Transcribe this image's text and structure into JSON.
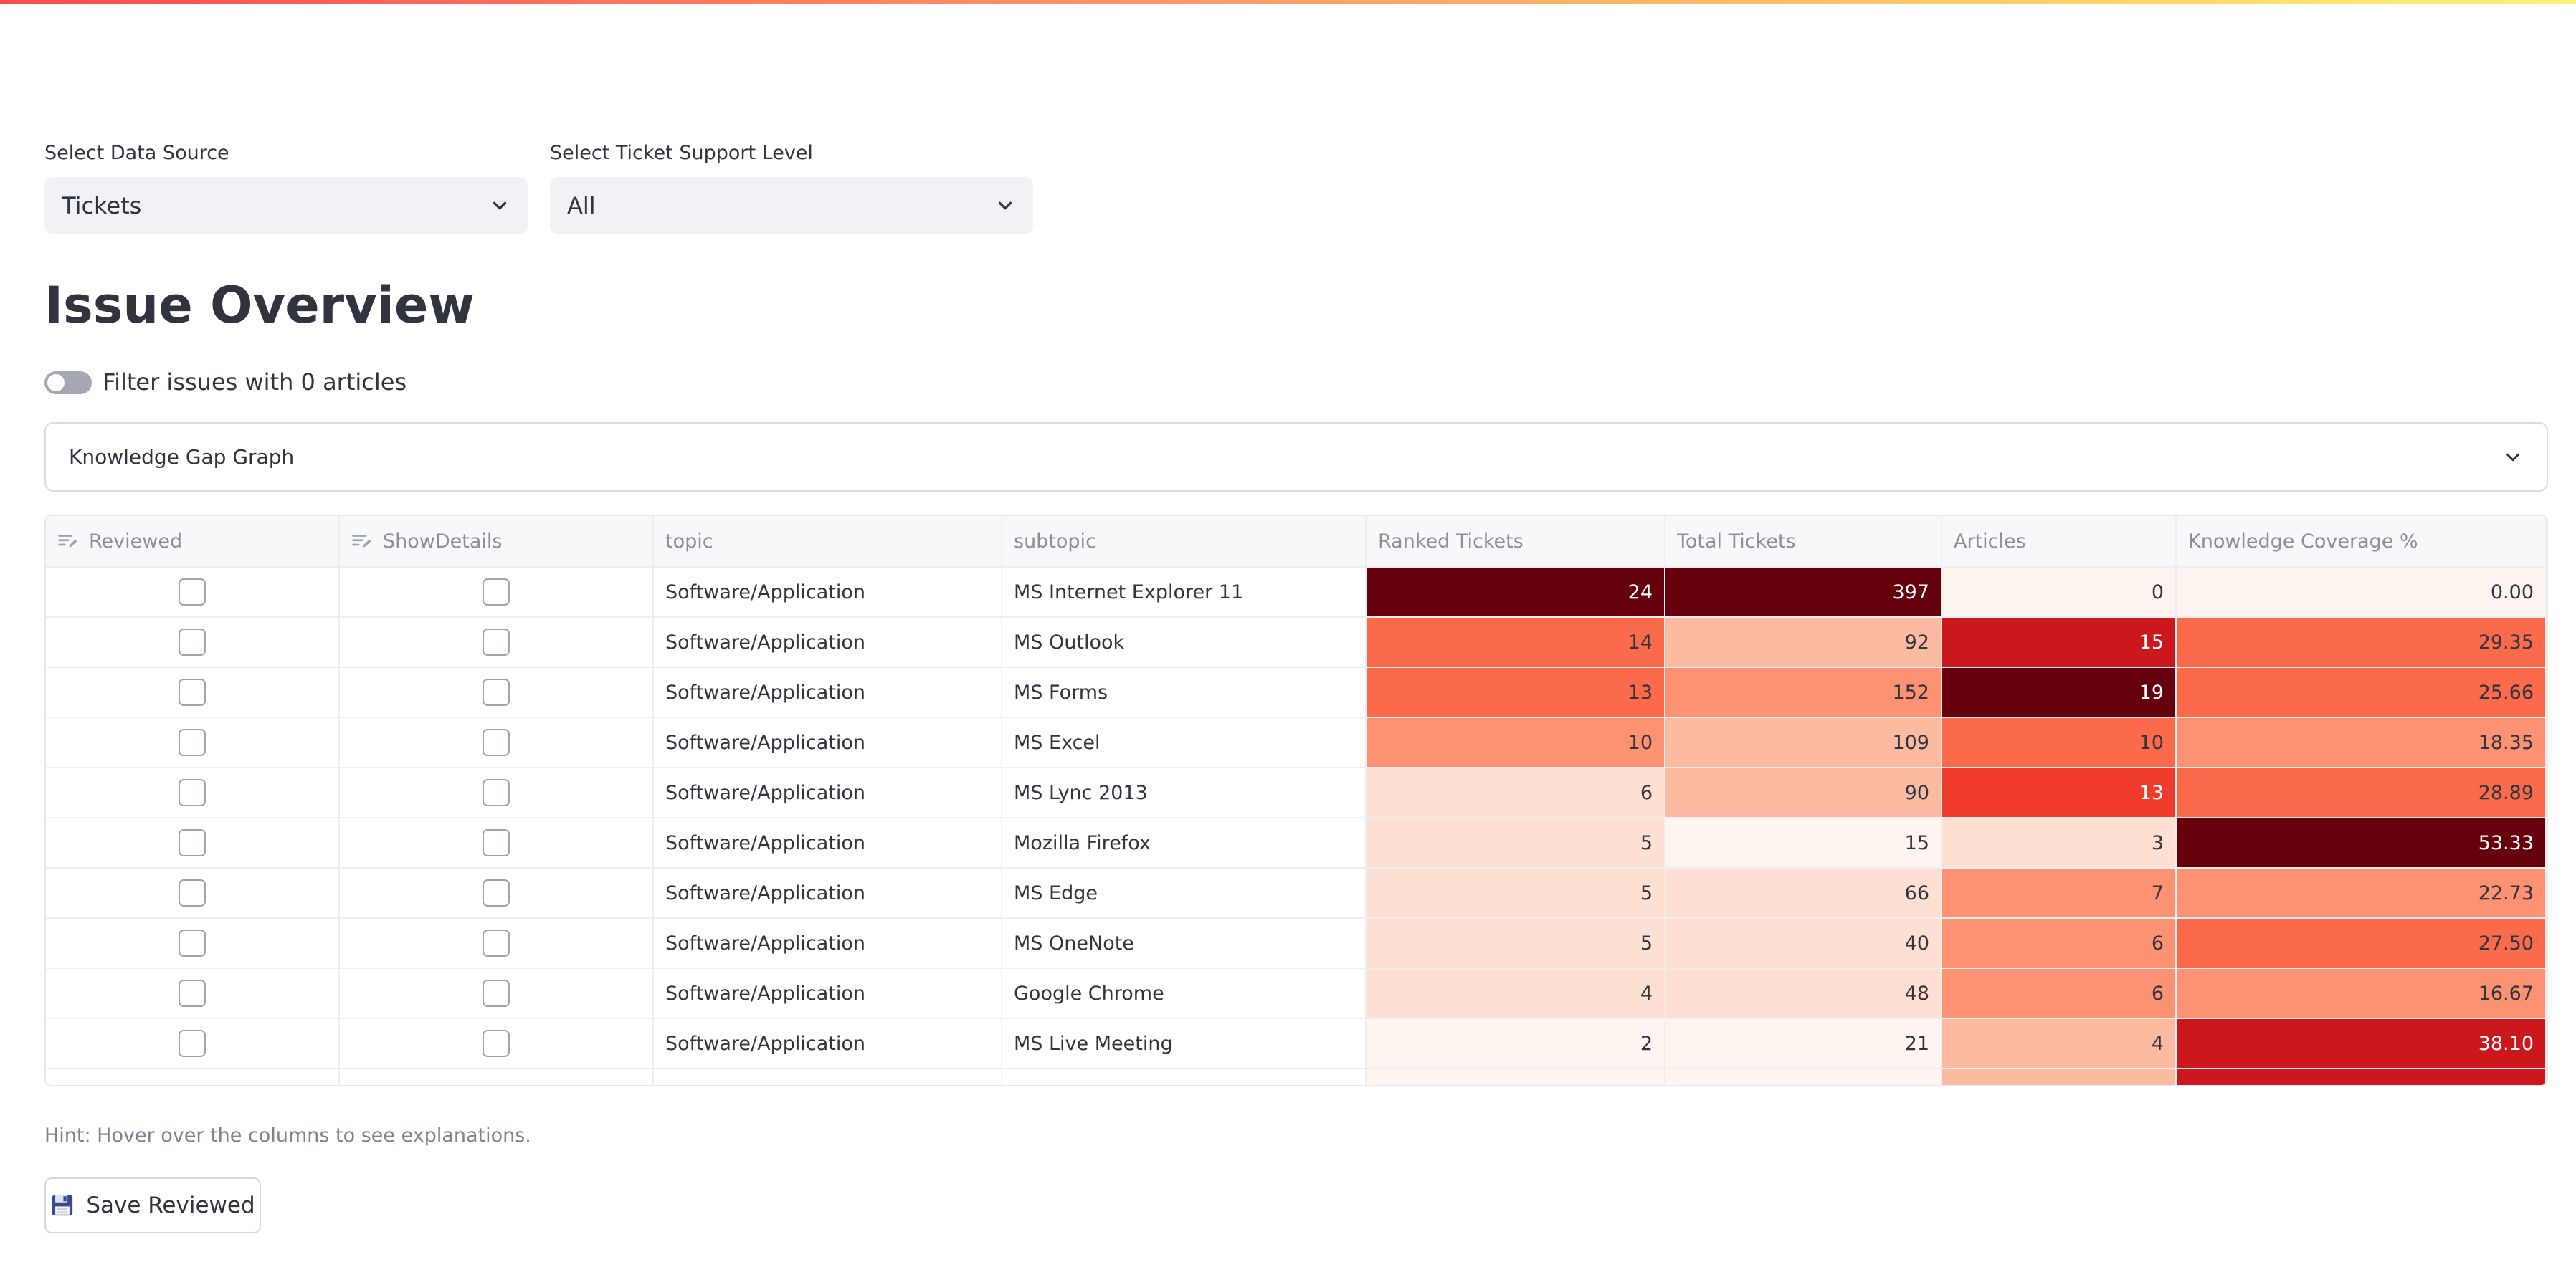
{
  "filters": {
    "data_source": {
      "label": "Select Data Source",
      "value": "Tickets"
    },
    "support_level": {
      "label": "Select Ticket Support Level",
      "value": "All"
    }
  },
  "page": {
    "title": "Issue Overview",
    "toggle_label": "Filter issues with 0 articles",
    "expander_label": "Knowledge Gap Graph",
    "hint": "Hint: Hover over the columns to see explanations.",
    "save_label": "Save Reviewed"
  },
  "colors": {
    "accent_red": "#ff4b4b",
    "heat_scale": [
      "#fff5f0",
      "#fee0d2",
      "#fcbba1",
      "#fc9272",
      "#fb6a4a",
      "#ef3b2c",
      "#cb181d",
      "#99000d",
      "#67000d"
    ]
  },
  "table": {
    "columns": [
      "Reviewed",
      "ShowDetails",
      "topic",
      "subtopic",
      "Ranked Tickets",
      "Total Tickets",
      "Articles",
      "Knowledge Coverage %"
    ],
    "rows": [
      {
        "topic": "Software/Application",
        "subtopic": "MS Internet Explorer 11",
        "ranked": "24",
        "total": "397",
        "articles": "0",
        "coverage": "0.00"
      },
      {
        "topic": "Software/Application",
        "subtopic": "MS Outlook",
        "ranked": "14",
        "total": "92",
        "articles": "15",
        "coverage": "29.35"
      },
      {
        "topic": "Software/Application",
        "subtopic": "MS Forms",
        "ranked": "13",
        "total": "152",
        "articles": "19",
        "coverage": "25.66"
      },
      {
        "topic": "Software/Application",
        "subtopic": "MS Excel",
        "ranked": "10",
        "total": "109",
        "articles": "10",
        "coverage": "18.35"
      },
      {
        "topic": "Software/Application",
        "subtopic": "MS Lync 2013",
        "ranked": "6",
        "total": "90",
        "articles": "13",
        "coverage": "28.89"
      },
      {
        "topic": "Software/Application",
        "subtopic": "Mozilla Firefox",
        "ranked": "5",
        "total": "15",
        "articles": "3",
        "coverage": "53.33"
      },
      {
        "topic": "Software/Application",
        "subtopic": "MS Edge",
        "ranked": "5",
        "total": "66",
        "articles": "7",
        "coverage": "22.73"
      },
      {
        "topic": "Software/Application",
        "subtopic": "MS OneNote",
        "ranked": "5",
        "total": "40",
        "articles": "6",
        "coverage": "27.50"
      },
      {
        "topic": "Software/Application",
        "subtopic": "Google Chrome",
        "ranked": "4",
        "total": "48",
        "articles": "6",
        "coverage": "16.67"
      },
      {
        "topic": "Software/Application",
        "subtopic": "MS Live Meeting",
        "ranked": "2",
        "total": "21",
        "articles": "4",
        "coverage": "38.10"
      }
    ]
  }
}
